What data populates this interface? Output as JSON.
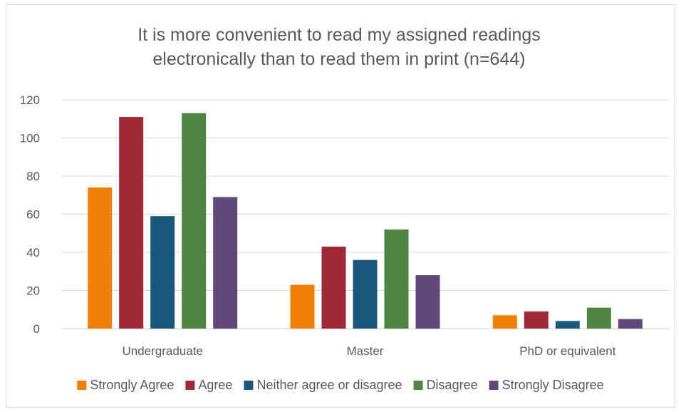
{
  "chart_data": {
    "type": "bar",
    "title_lines": [
      "It is more convenient to read my assigned readings",
      "electronically than to read them in print (n=644)"
    ],
    "xlabel": "",
    "ylabel": "",
    "categories": [
      "Undergraduate",
      "Master",
      "PhD or equivalent"
    ],
    "series": [
      {
        "name": "Strongly Agree",
        "color": "#f07f09",
        "values": [
          74,
          23,
          7
        ]
      },
      {
        "name": "Agree",
        "color": "#9f2936",
        "values": [
          111,
          43,
          9
        ]
      },
      {
        "name": "Neither agree or disagree",
        "color": "#1b587c",
        "values": [
          59,
          36,
          4
        ]
      },
      {
        "name": "Disagree",
        "color": "#4e8542",
        "values": [
          113,
          52,
          11
        ]
      },
      {
        "name": "Strongly Disagree",
        "color": "#604878",
        "values": [
          69,
          28,
          5
        ]
      }
    ],
    "ylim": [
      0,
      120
    ],
    "yticks": [
      "0",
      "20",
      "40",
      "60",
      "80",
      "100",
      "120"
    ],
    "grid": true,
    "legend_position": "bottom"
  }
}
